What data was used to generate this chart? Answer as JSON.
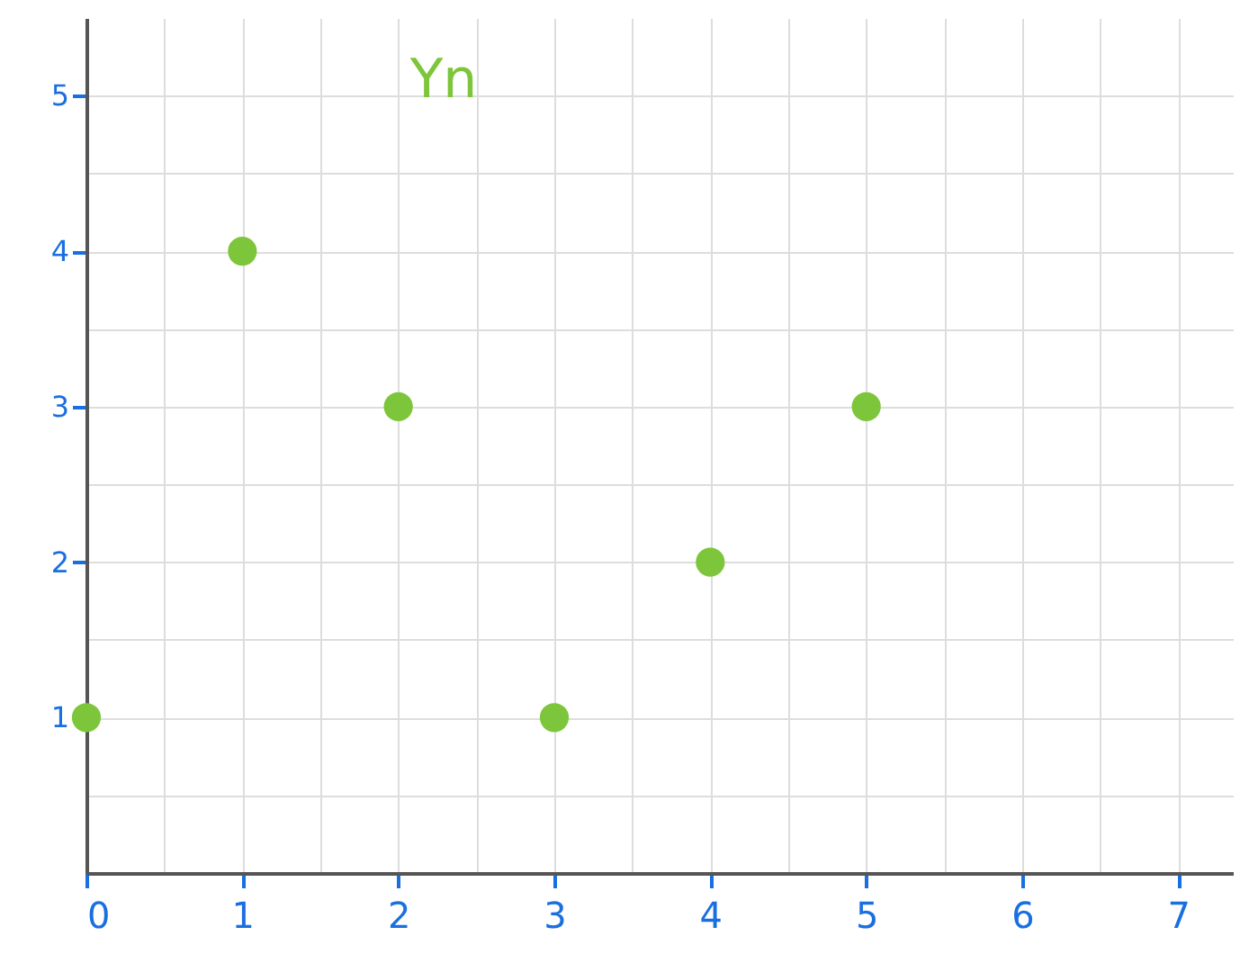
{
  "chart_data": {
    "type": "scatter",
    "title": "Yn",
    "x": [
      0,
      1,
      2,
      3,
      4,
      5
    ],
    "series": [
      {
        "color": "#7dc63b",
        "values": [
          1,
          4,
          3,
          1,
          2,
          3
        ]
      }
    ],
    "xlim": [
      0,
      7.35
    ],
    "ylim": [
      0,
      5.5
    ],
    "xticks": [
      0,
      {
        "value": 0.5,
        "label": null
      },
      1,
      {
        "value": 1.5,
        "label": null
      },
      2,
      {
        "value": 2.5,
        "label": null
      },
      3,
      {
        "value": 3.5,
        "label": null
      },
      4,
      {
        "value": 4.5,
        "label": null
      },
      5,
      {
        "value": 5.5,
        "label": null
      },
      6,
      {
        "value": 6.5,
        "label": null
      },
      7
    ],
    "yticks": [
      {
        "value": 0.5,
        "label": null
      },
      1,
      {
        "value": 1.5,
        "label": null
      },
      2,
      {
        "value": 2.5,
        "label": null
      },
      3,
      {
        "value": 3.5,
        "label": null
      },
      4,
      {
        "value": 4.5,
        "label": null
      },
      5
    ],
    "grid": true,
    "marker": "circle",
    "legend": false
  }
}
